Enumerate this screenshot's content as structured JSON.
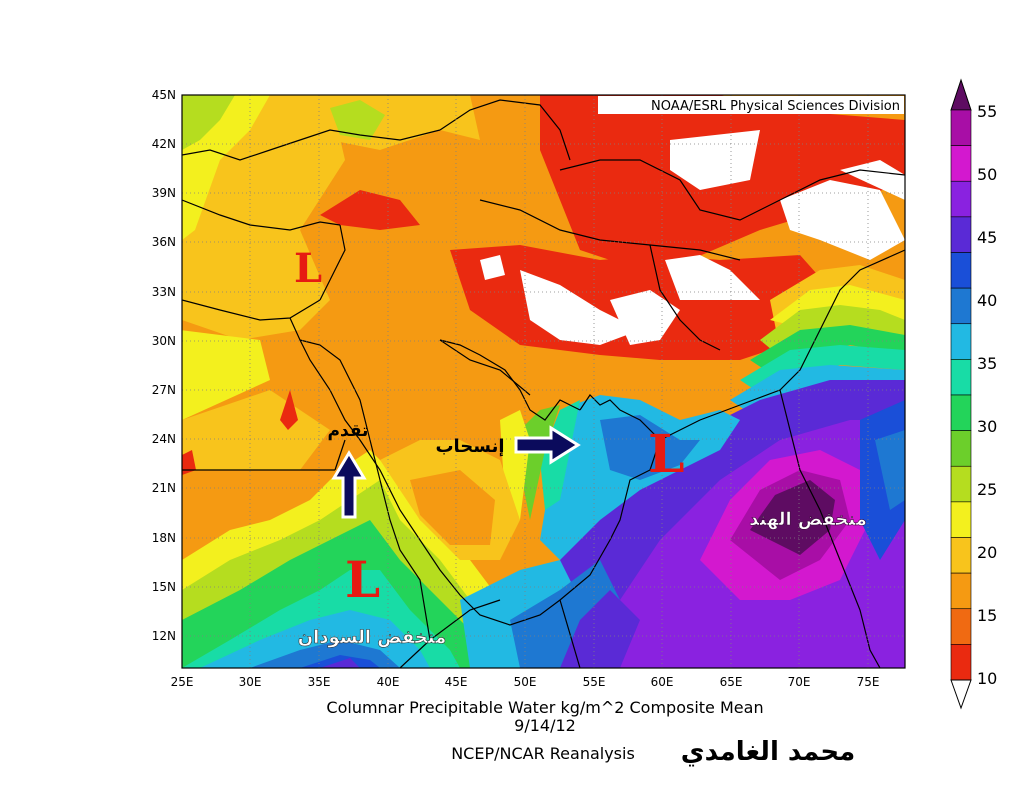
{
  "map": {
    "credit": "NOAA/ESRL Physical Sciences Division",
    "title_line1": "Columnar Precipitable Water kg/m^2 Composite Mean",
    "title_line2": "9/14/12",
    "source": "NCEP/NCAR Reanalysis",
    "author_signature": "محمد الغامدي",
    "lat_ticks": [
      "45N",
      "42N",
      "39N",
      "36N",
      "33N",
      "30N",
      "27N",
      "24N",
      "21N",
      "18N",
      "15N",
      "12N"
    ],
    "lon_ticks": [
      "25E",
      "30E",
      "35E",
      "40E",
      "45E",
      "50E",
      "55E",
      "60E",
      "65E",
      "70E",
      "75E"
    ],
    "annotations": {
      "advance": "تقدم",
      "retreat": "إنسحاب",
      "india_low": "منخفض الهند",
      "sudan_low": "منخفض السودان"
    },
    "low_symbol": "L"
  },
  "legend": {
    "levels": [
      "55",
      "50",
      "45",
      "40",
      "35",
      "30",
      "25",
      "20",
      "15",
      "10"
    ],
    "colors": [
      "#5e0c62",
      "#a80ea6",
      "#d318cf",
      "#8a22e0",
      "#5a2ad6",
      "#1a4fd8",
      "#1e78d2",
      "#22b9e3",
      "#18dca6",
      "#23d45a",
      "#6ccf2b",
      "#b5dd1f",
      "#f3f01e",
      "#f8c41c",
      "#f59a12",
      "#f06a12",
      "#ea2a10",
      "#ffffff"
    ]
  }
}
